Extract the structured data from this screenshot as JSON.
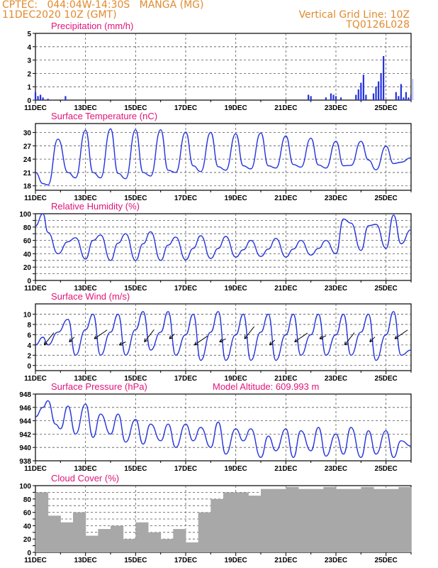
{
  "header": {
    "line1": "CPTEC:   044:04W-14:30S   MANGA (MG)",
    "line2": "11DEC2020 10Z (GMT)",
    "right1": "Vertical Grid Line: 10Z",
    "right2": "TQ0126L028"
  },
  "x_labels": [
    "11DEC",
    "13DEC",
    "15DEC",
    "17DEC",
    "19DEC",
    "21DEC",
    "23DEC",
    "25DEC"
  ],
  "colors": {
    "line": "#2433dc",
    "bar": "#2433dc",
    "cloud": "#a8a8a8",
    "title": "#e0147a",
    "header": "#e08a2e"
  },
  "chart_data": [
    {
      "type": "bar",
      "title": "Precipitation (mm/h)",
      "ylim": [
        0,
        5
      ],
      "yticks": [
        0,
        1,
        2,
        3,
        4,
        5
      ],
      "x_unit": "day offset from 11DEC 10Z",
      "x": [
        0.0,
        0.1,
        0.2,
        0.3,
        0.5,
        1.2,
        10.9,
        11.0,
        11.6,
        11.8,
        11.9,
        12.0,
        12.2,
        12.8,
        12.9,
        13.0,
        13.1,
        13.2,
        13.5,
        13.6,
        13.7,
        13.8,
        13.9,
        14.4,
        14.5,
        14.6,
        14.7,
        14.8,
        14.9,
        15.0,
        15.1
      ],
      "values": [
        0.6,
        0.3,
        0.4,
        0.2,
        0.1,
        0.3,
        0.4,
        0.3,
        0.2,
        0.5,
        0.4,
        0.3,
        0.2,
        0.4,
        0.8,
        1.3,
        1.9,
        0.4,
        0.5,
        1.0,
        1.4,
        2.0,
        3.3,
        0.6,
        0.3,
        1.2,
        0.2,
        0.6,
        0.2,
        0.4,
        1.6
      ]
    },
    {
      "type": "line",
      "title": "Surface Temperature (nC)",
      "ylim": [
        17,
        32
      ],
      "yticks": [
        18,
        21,
        24,
        27,
        30
      ],
      "x_unit": "day offset from 11DEC 10Z",
      "x": [
        0.0,
        0.3,
        0.5,
        0.9,
        1.3,
        1.6,
        2.0,
        2.3,
        2.6,
        3.0,
        3.3,
        3.6,
        4.0,
        4.3,
        4.6,
        5.0,
        5.3,
        5.6,
        6.0,
        6.3,
        6.6,
        7.0,
        7.3,
        7.6,
        8.0,
        8.3,
        8.6,
        9.0,
        9.3,
        9.6,
        10.0,
        10.3,
        10.6,
        11.0,
        11.3,
        11.6,
        12.0,
        12.3,
        12.6,
        13.0,
        13.3,
        13.6,
        14.0,
        14.3,
        14.6,
        15.0
      ],
      "values": [
        21.0,
        18.5,
        18.2,
        28.5,
        21.0,
        19.8,
        30.5,
        21.0,
        19.8,
        30.8,
        20.8,
        19.6,
        30.6,
        21.0,
        20.2,
        30.6,
        21.5,
        21.0,
        30.1,
        22.5,
        21.2,
        30.0,
        22.3,
        21.5,
        29.7,
        22.5,
        21.8,
        29.9,
        22.5,
        22.0,
        29.2,
        22.8,
        22.2,
        28.7,
        22.7,
        22.0,
        28.0,
        22.5,
        22.6,
        28.0,
        23.8,
        21.6,
        26.9,
        23.0,
        23.3,
        24.3
      ]
    },
    {
      "type": "line",
      "title": "Relative Humidity (%)",
      "ylim": [
        0,
        100
      ],
      "yticks": [
        0,
        10,
        20,
        30,
        40,
        50,
        60,
        70,
        80,
        90,
        100
      ],
      "ytick_labels": [
        0,
        20,
        40,
        60,
        80,
        100
      ],
      "x_unit": "day offset from 11DEC 10Z",
      "x": [
        0.0,
        0.3,
        0.5,
        0.9,
        1.3,
        1.6,
        2.0,
        2.3,
        2.6,
        3.0,
        3.3,
        3.6,
        4.0,
        4.3,
        4.6,
        5.0,
        5.3,
        5.6,
        6.0,
        6.3,
        6.6,
        7.0,
        7.3,
        7.6,
        8.0,
        8.3,
        8.6,
        9.0,
        9.3,
        9.6,
        10.0,
        10.3,
        10.6,
        11.0,
        11.3,
        11.6,
        12.0,
        12.3,
        12.6,
        13.0,
        13.3,
        13.6,
        14.0,
        14.3,
        14.6,
        15.0
      ],
      "values": [
        82,
        100,
        72,
        40,
        58,
        64,
        32,
        60,
        68,
        30,
        56,
        70,
        30,
        55,
        73,
        30,
        53,
        65,
        31,
        48,
        67,
        33,
        48,
        66,
        35,
        46,
        60,
        36,
        47,
        63,
        35,
        47,
        60,
        38,
        48,
        60,
        40,
        92,
        86,
        45,
        82,
        84,
        48,
        98,
        55,
        76
      ]
    },
    {
      "type": "line",
      "title": "Surface Wind (m/s)",
      "ylim": [
        -1,
        12
      ],
      "yticks": [
        0,
        2,
        4,
        6,
        8,
        10
      ],
      "x_unit": "day offset from 11DEC 10Z",
      "x": [
        0.0,
        0.3,
        0.5,
        0.9,
        1.3,
        1.6,
        2.0,
        2.3,
        2.6,
        3.0,
        3.3,
        3.6,
        4.0,
        4.3,
        4.6,
        5.0,
        5.3,
        5.6,
        6.0,
        6.3,
        6.6,
        7.0,
        7.3,
        7.6,
        8.0,
        8.3,
        8.6,
        9.0,
        9.3,
        9.6,
        10.0,
        10.3,
        10.6,
        11.0,
        11.3,
        11.6,
        12.0,
        12.3,
        12.6,
        13.0,
        13.3,
        13.6,
        14.0,
        14.3,
        14.6,
        15.0
      ],
      "values": [
        4,
        5.5,
        4,
        6.5,
        9,
        2,
        7,
        10,
        2,
        6.5,
        10,
        2,
        7,
        10.5,
        3,
        6.5,
        10.5,
        2,
        6,
        10,
        1,
        6.5,
        10.5,
        1,
        6,
        10,
        1,
        6.5,
        10,
        1,
        6,
        10,
        2,
        6,
        10,
        2,
        6,
        10,
        2,
        6.5,
        10,
        1,
        6,
        10.5,
        2,
        3
      ]
    },
    {
      "type": "line",
      "title": "Surface Pressure (hPa)",
      "annotation": "Model Altitude: 609.993  m",
      "ylim": [
        938,
        948
      ],
      "yticks": [
        938,
        940,
        942,
        944,
        946,
        948
      ],
      "x_unit": "day offset from 11DEC 10Z",
      "x": [
        0.0,
        0.3,
        0.5,
        0.8,
        1.0,
        1.3,
        1.6,
        2.0,
        2.3,
        2.6,
        3.0,
        3.3,
        3.6,
        4.0,
        4.3,
        4.6,
        5.0,
        5.3,
        5.6,
        6.0,
        6.3,
        6.6,
        7.0,
        7.3,
        7.6,
        8.0,
        8.3,
        8.6,
        9.0,
        9.3,
        9.6,
        10.0,
        10.3,
        10.6,
        11.0,
        11.3,
        11.6,
        12.0,
        12.3,
        12.6,
        13.0,
        13.3,
        13.6,
        14.0,
        14.3,
        14.6,
        15.0
      ],
      "values": [
        944.6,
        946.0,
        947.0,
        943.5,
        942.8,
        946.2,
        942.0,
        946.5,
        941.5,
        945.0,
        942.0,
        945.0,
        940.8,
        944.2,
        940.5,
        943.5,
        941.0,
        943.5,
        940.0,
        943.5,
        941.0,
        943.0,
        940.0,
        943.8,
        939.0,
        942.8,
        941.0,
        942.8,
        938.5,
        941.7,
        939.5,
        942.8,
        938.5,
        942.5,
        939.5,
        943.0,
        938.7,
        942.0,
        939.0,
        943.0,
        938.5,
        942.5,
        939.0,
        942.5,
        938.5,
        941.0,
        940.2
      ]
    },
    {
      "type": "bar",
      "title": "Cloud Cover (%)",
      "ylim": [
        0,
        100
      ],
      "yticks": [
        0,
        10,
        20,
        30,
        40,
        50,
        60,
        70,
        80,
        90,
        100
      ],
      "ytick_labels": [
        0,
        20,
        40,
        60,
        80,
        100
      ],
      "x_unit": "day offset from 11DEC 10Z",
      "x": [
        0.0,
        0.5,
        1.0,
        1.5,
        2.0,
        2.5,
        3.0,
        3.5,
        4.0,
        4.5,
        5.0,
        5.5,
        6.0,
        6.5,
        7.0,
        7.5,
        8.0,
        8.5,
        9.0,
        9.5,
        10.0,
        10.5,
        11.0,
        11.5,
        12.0,
        12.5,
        13.0,
        13.5,
        14.0,
        14.5,
        15.0
      ],
      "values": [
        90,
        55,
        45,
        60,
        25,
        35,
        40,
        20,
        45,
        30,
        20,
        35,
        15,
        60,
        80,
        90,
        90,
        85,
        95,
        95,
        98,
        95,
        95,
        98,
        95,
        95,
        98,
        95,
        95,
        98,
        98
      ]
    }
  ]
}
